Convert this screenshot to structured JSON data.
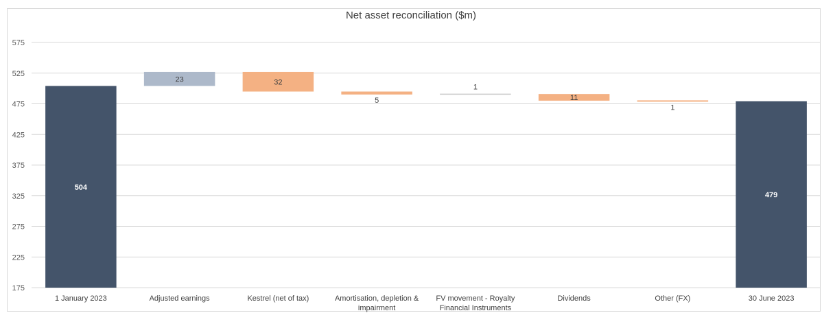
{
  "chart_data": {
    "type": "bar",
    "subtype": "waterfall",
    "title": "Net asset reconciliation ($m)",
    "xlabel": "",
    "ylabel": "",
    "ylim": [
      175,
      575
    ],
    "yticks": [
      175,
      225,
      275,
      325,
      375,
      425,
      475,
      525,
      575
    ],
    "grid": true,
    "categories": [
      "1 January 2023",
      "Adjusted earnings",
      "Kestrel (net of tax)",
      "Amortisation, depletion & impairment",
      "FV movement - Royalty Financial Instruments",
      "Dividends",
      "Other (FX)",
      "30 June 2023"
    ],
    "category_lines": [
      [
        "1 January 2023"
      ],
      [
        "Adjusted earnings"
      ],
      [
        "Kestrel (net of tax)"
      ],
      [
        "Amortisation, depletion &",
        "impairment"
      ],
      [
        "FV movement - Royalty",
        "Financial Instruments"
      ],
      [
        "Dividends"
      ],
      [
        "Other (FX)"
      ],
      [
        "30 June 2023"
      ]
    ],
    "bars": [
      {
        "kind": "total",
        "start": 175,
        "end": 504,
        "label": "504",
        "color": "#44546a"
      },
      {
        "kind": "increase",
        "start": 504,
        "end": 527,
        "label": "23",
        "color": "#adb9ca"
      },
      {
        "kind": "decrease",
        "start": 527,
        "end": 495,
        "label": "32",
        "color": "#f4b183"
      },
      {
        "kind": "decrease",
        "start": 495,
        "end": 490,
        "label": "5",
        "color": "#f4b183"
      },
      {
        "kind": "increase",
        "start": 490,
        "end": 491,
        "label": "1",
        "color": "#d0d0d0"
      },
      {
        "kind": "decrease",
        "start": 491,
        "end": 480,
        "label": "11",
        "color": "#f4b183"
      },
      {
        "kind": "decrease",
        "start": 480,
        "end": 479,
        "label": "1",
        "color": "#f4b183"
      },
      {
        "kind": "total",
        "start": 175,
        "end": 479,
        "label": "479",
        "color": "#44546a"
      }
    ]
  }
}
